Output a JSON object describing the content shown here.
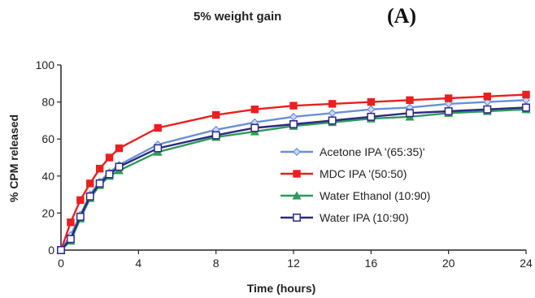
{
  "chart_data": {
    "type": "line",
    "title": "5% weight gain",
    "panel_label": "(A)",
    "xlabel": "Time (hours)",
    "ylabel": "% CPM released",
    "xlim": [
      0,
      24
    ],
    "ylim": [
      0,
      100
    ],
    "xticks": [
      0,
      4,
      8,
      12,
      16,
      20,
      24
    ],
    "yticks": [
      0,
      20,
      40,
      60,
      80,
      100
    ],
    "grid": false,
    "legend_position": "center-right",
    "series": [
      {
        "name": "Acetone IPA '(65:35)'",
        "color": "#6b8fd6",
        "marker": "diamond",
        "x": [
          0,
          0.5,
          1,
          1.5,
          2,
          2.5,
          3,
          5,
          8,
          10,
          12,
          14,
          16,
          18,
          20,
          22,
          24
        ],
        "y": [
          0,
          8,
          19,
          30,
          37,
          42,
          46,
          57,
          65,
          69,
          72,
          74,
          76,
          77,
          79,
          80,
          81
        ]
      },
      {
        "name": "MDC IPA '(50:50)",
        "color": "#e82020",
        "marker": "square",
        "x": [
          0,
          0.5,
          1,
          1.5,
          2,
          2.5,
          3,
          5,
          8,
          10,
          12,
          14,
          16,
          18,
          20,
          22,
          24
        ],
        "y": [
          0,
          15,
          27,
          36,
          44,
          50,
          55,
          66,
          73,
          76,
          78,
          79,
          80,
          81,
          82,
          83,
          84
        ]
      },
      {
        "name": "Water  Ethanol (10:90)",
        "color": "#2e9a5a",
        "marker": "triangle",
        "x": [
          0,
          0.5,
          1,
          1.5,
          2,
          2.5,
          3,
          5,
          8,
          10,
          12,
          14,
          16,
          18,
          20,
          22,
          24
        ],
        "y": [
          0,
          5,
          17,
          28,
          35,
          40,
          43,
          53,
          61,
          64,
          67,
          69,
          71,
          72,
          74,
          75,
          76
        ]
      },
      {
        "name": "Water  IPA (10:90)",
        "color": "#2a2a80",
        "marker": "open-square",
        "x": [
          0,
          0.5,
          1,
          1.5,
          2,
          2.5,
          3,
          5,
          8,
          10,
          12,
          14,
          16,
          18,
          20,
          22,
          24
        ],
        "y": [
          0,
          6,
          18,
          29,
          36,
          41,
          45,
          55,
          62,
          66,
          68,
          70,
          72,
          74,
          75,
          76,
          77
        ]
      }
    ]
  }
}
